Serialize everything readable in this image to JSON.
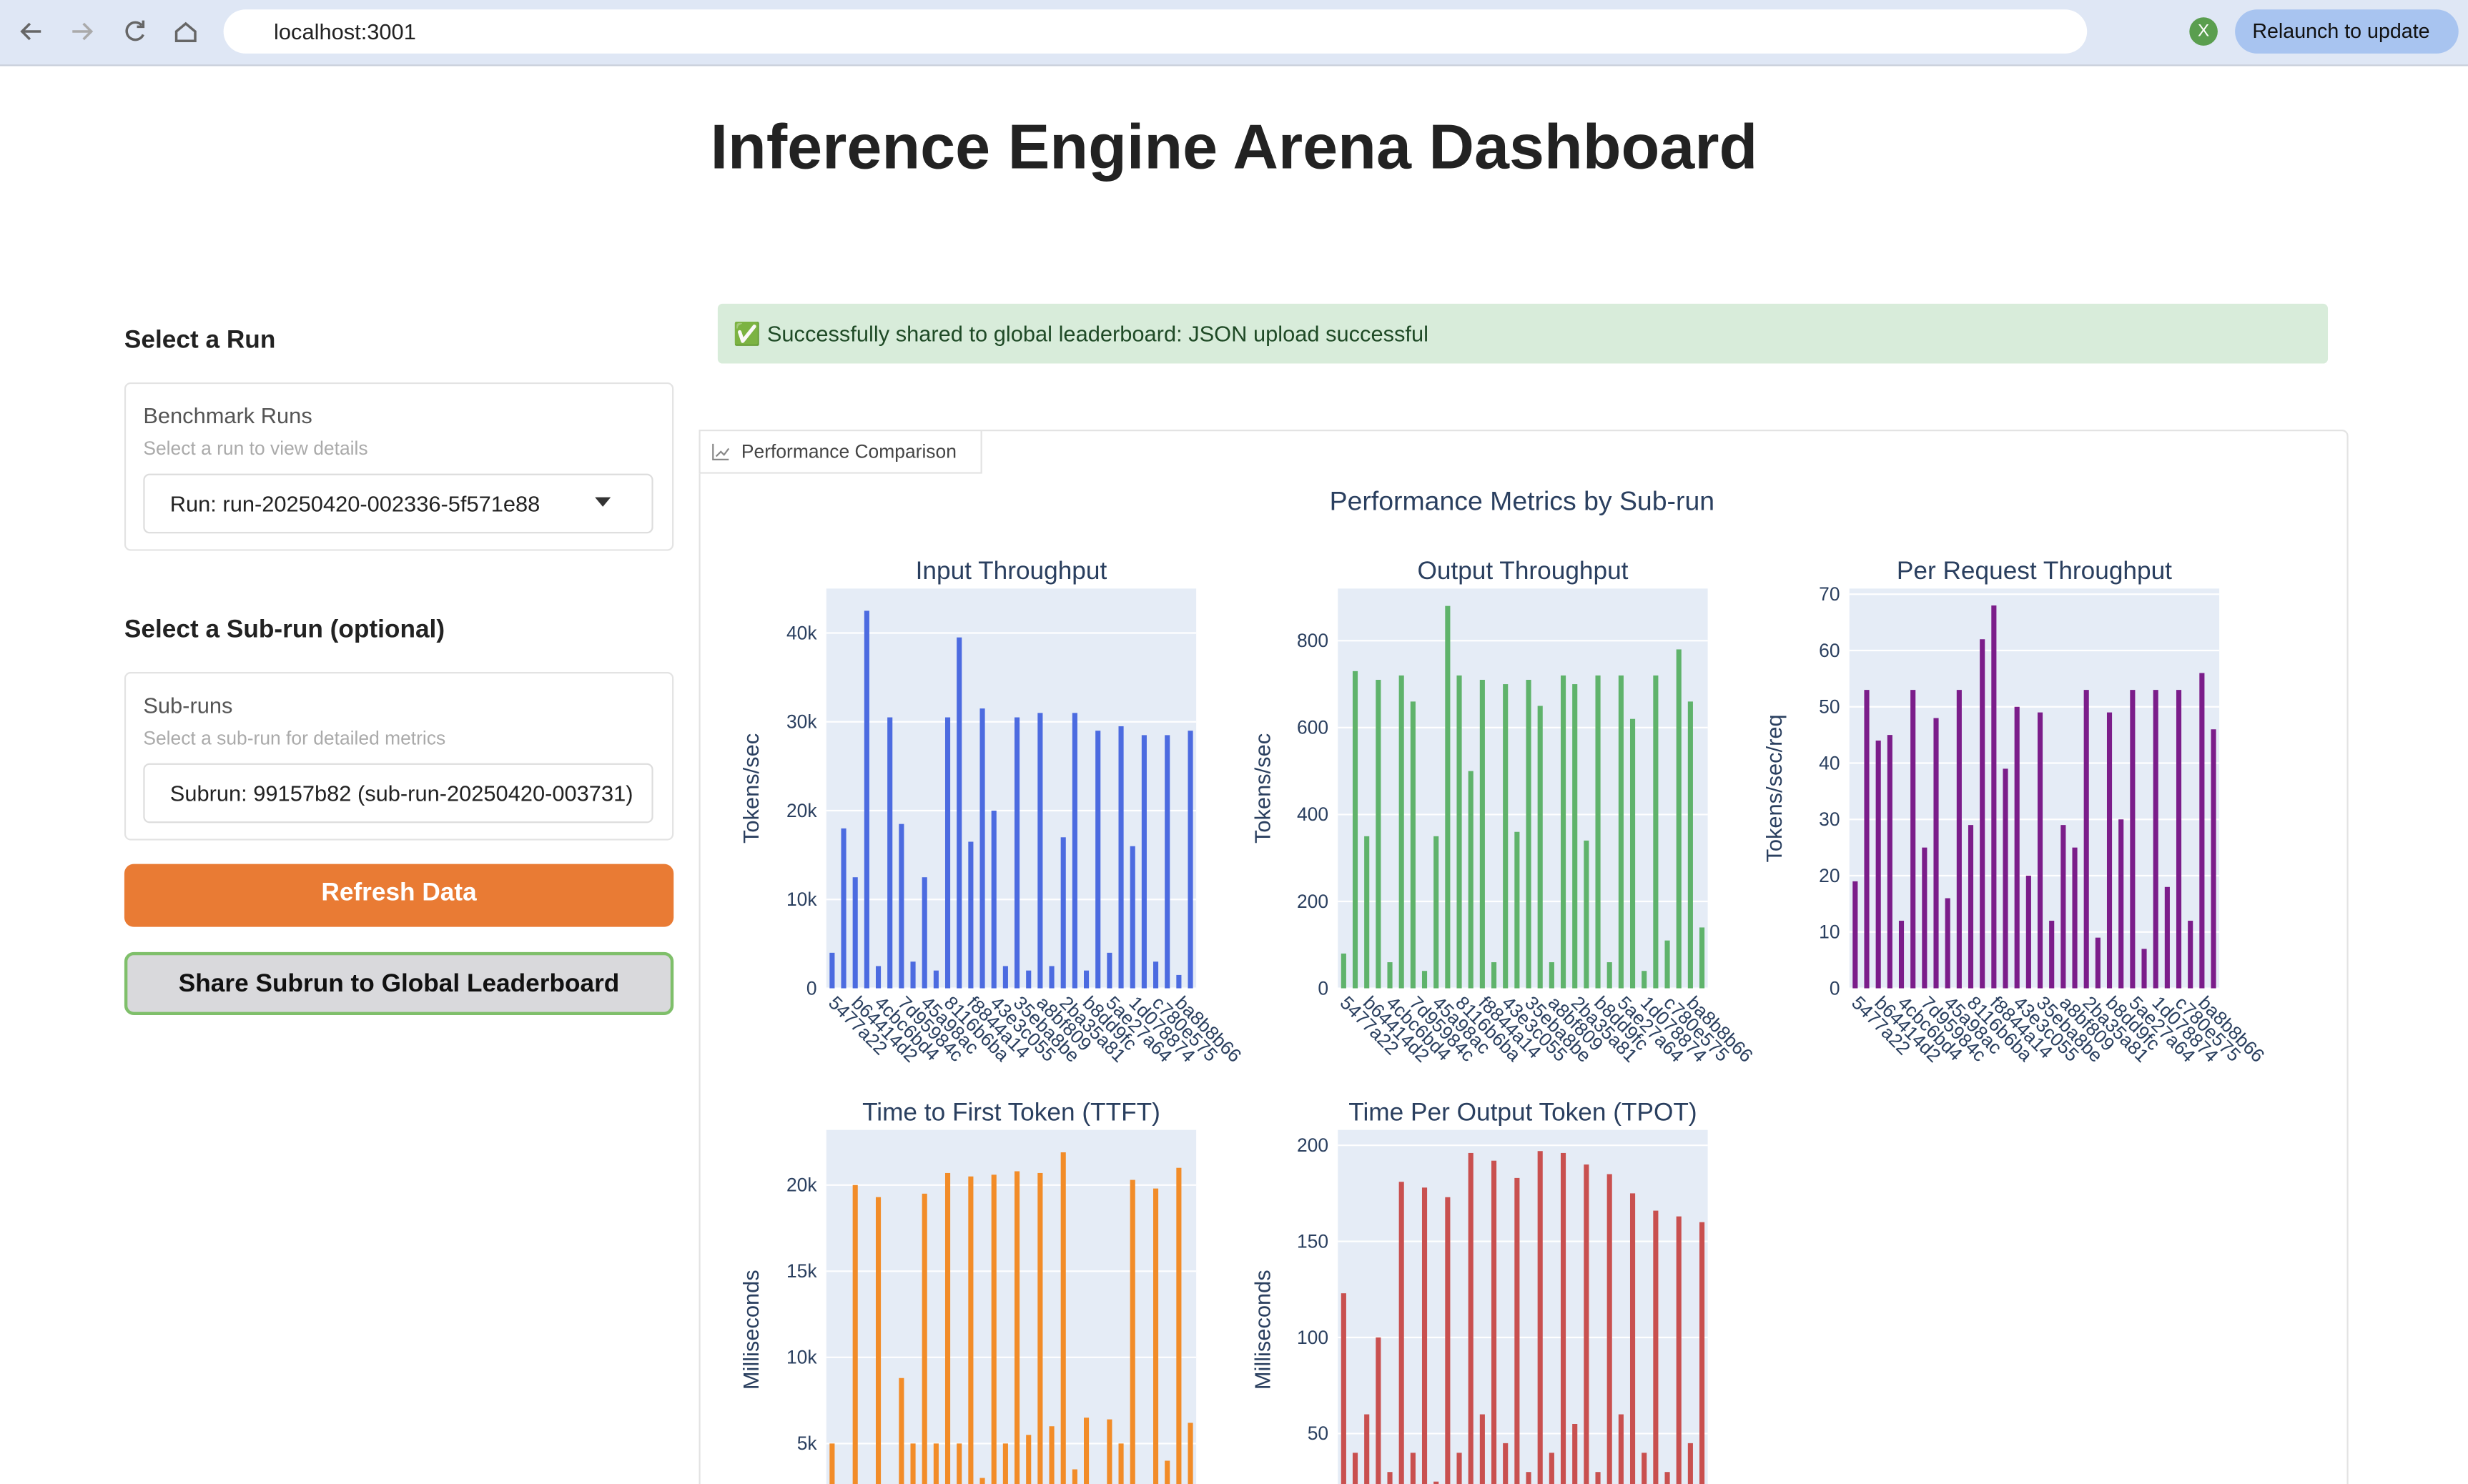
{
  "browser": {
    "url": "localhost:3001",
    "avatar": "X",
    "relaunch": "Relaunch to update"
  },
  "header": {
    "title": "Inference Engine Arena Dashboard"
  },
  "sidebar": {
    "run_section": "Select a Run",
    "run_label": "Benchmark Runs",
    "run_hint": "Select a run to view details",
    "run_value": "Run: run-20250420-002336-5f571e88",
    "subrun_section": "Select a Sub-run (optional)",
    "subrun_label": "Sub-runs",
    "subrun_hint": "Select a sub-run for detailed metrics",
    "subrun_value": "Subrun: 99157b82 (sub-run-20250420-003731)",
    "refresh_button": "Refresh Data",
    "share_button": "Share Subrun to Global Leaderboard"
  },
  "banner": {
    "text": "✅ Successfully shared to global leaderboard: JSON upload successful"
  },
  "tab": {
    "label": "Performance Comparison"
  },
  "figure": {
    "title": "Performance Metrics by Sub-run"
  },
  "chart_data": [
    {
      "type": "bar",
      "title": "Input Throughput",
      "y_label": "Tokens/sec",
      "color": "#4c6be0",
      "categories": [
        "5477a22",
        null,
        "b64414d2",
        null,
        "4cbc6bd4",
        null,
        "7d95984c",
        null,
        "45a98ac",
        null,
        "8116b6ba",
        null,
        "f8844a14",
        null,
        "43e3c055",
        null,
        "35eba8be",
        null,
        "a8bf809",
        null,
        "2ba35a81",
        null,
        "b8dd9fc",
        null,
        "5ae27a64",
        null,
        "1d078874",
        null,
        "c780e575",
        null,
        "ba8b8b66",
        null
      ],
      "values": [
        4000,
        18000,
        12500,
        42500,
        2500,
        30500,
        18500,
        3000,
        12500,
        2000,
        30500,
        39500,
        16500,
        31500,
        20000,
        2500,
        30500,
        2000,
        31000,
        2500,
        17000,
        31000,
        2000,
        29000,
        4000,
        29500,
        16000,
        28500,
        3000,
        28500,
        1500,
        29000
      ],
      "ylim": [
        0,
        45000
      ],
      "yticks": [
        0,
        {
          "value": 10000,
          "label": "10k"
        },
        {
          "value": 20000,
          "label": "20k"
        },
        {
          "value": 30000,
          "label": "30k"
        },
        {
          "value": 40000,
          "label": "40k"
        }
      ]
    },
    {
      "type": "bar",
      "title": "Output Throughput",
      "y_label": "Tokens/sec",
      "color": "#5fb36b",
      "categories": [
        "5477a22",
        null,
        "b64414d2",
        null,
        "4cbc6bd4",
        null,
        "7d95984c",
        null,
        "45a98ac",
        null,
        "8116b6ba",
        null,
        "f8844a14",
        null,
        "43e3c055",
        null,
        "35eba8be",
        null,
        "a8bf809",
        null,
        "2ba35a81",
        null,
        "b8dd9fc",
        null,
        "5ae27a64",
        null,
        "1d078874",
        null,
        "c780e575",
        null,
        "ba8b8b66",
        null
      ],
      "values": [
        80,
        730,
        350,
        710,
        60,
        720,
        660,
        40,
        350,
        880,
        720,
        500,
        710,
        60,
        700,
        360,
        710,
        650,
        60,
        720,
        700,
        340,
        720,
        60,
        720,
        620,
        40,
        720,
        110,
        780,
        660,
        140
      ],
      "ylim": [
        0,
        920
      ],
      "yticks": [
        0,
        200,
        400,
        600,
        800
      ]
    },
    {
      "type": "bar",
      "title": "Per Request Throughput",
      "y_label": "Tokens/sec/req",
      "color": "#7b1d8a",
      "categories": [
        "5477a22",
        null,
        "b64414d2",
        null,
        "4cbc6bd4",
        null,
        "7d95984c",
        null,
        "45a98ac",
        null,
        "8116b6ba",
        null,
        "f8844a14",
        null,
        "43e3c055",
        null,
        "35eba8be",
        null,
        "a8bf809",
        null,
        "2ba35a81",
        null,
        "b8dd9fc",
        null,
        "5ae27a64",
        null,
        "1d078874",
        null,
        "c780e575",
        null,
        "ba8b8b66",
        null
      ],
      "values": [
        19,
        53,
        44,
        45,
        12,
        53,
        25,
        48,
        16,
        53,
        29,
        62,
        68,
        39,
        50,
        20,
        49,
        12,
        29,
        25,
        53,
        9,
        49,
        30,
        53,
        7,
        53,
        18,
        53,
        12,
        56,
        46
      ],
      "ylim": [
        0,
        71
      ],
      "yticks": [
        0,
        10,
        20,
        30,
        40,
        50,
        60,
        70
      ]
    },
    {
      "type": "bar",
      "title": "Time to First Token (TTFT)",
      "y_label": "Milliseconds",
      "color": "#f28c28",
      "values": [
        5000,
        300,
        20000,
        1000,
        19300,
        500,
        8800,
        5000,
        19500,
        5000,
        20700,
        5000,
        20500,
        3000,
        20600,
        5000,
        20800,
        5500,
        20700,
        6000,
        21900,
        3500,
        6500,
        400,
        6400,
        5000,
        20300,
        2000,
        19800,
        4000,
        21000,
        6200
      ],
      "ylim": [
        0,
        23200
      ],
      "yticks": [
        {
          "value": 5000,
          "label": "5k"
        },
        {
          "value": 10000,
          "label": "10k"
        },
        {
          "value": 15000,
          "label": "15k"
        },
        {
          "value": 20000,
          "label": "20k"
        }
      ]
    },
    {
      "type": "bar",
      "title": "Time Per Output Token (TPOT)",
      "y_label": "Milliseconds",
      "color": "#c9504f",
      "values": [
        123,
        40,
        60,
        100,
        30,
        181,
        40,
        178,
        25,
        173,
        40,
        196,
        60,
        192,
        45,
        183,
        30,
        197,
        40,
        196,
        55,
        190,
        30,
        185,
        60,
        175,
        40,
        166,
        30,
        163,
        45,
        160
      ],
      "ylim": [
        0,
        208
      ],
      "yticks": [
        50,
        100,
        150,
        200
      ]
    }
  ]
}
